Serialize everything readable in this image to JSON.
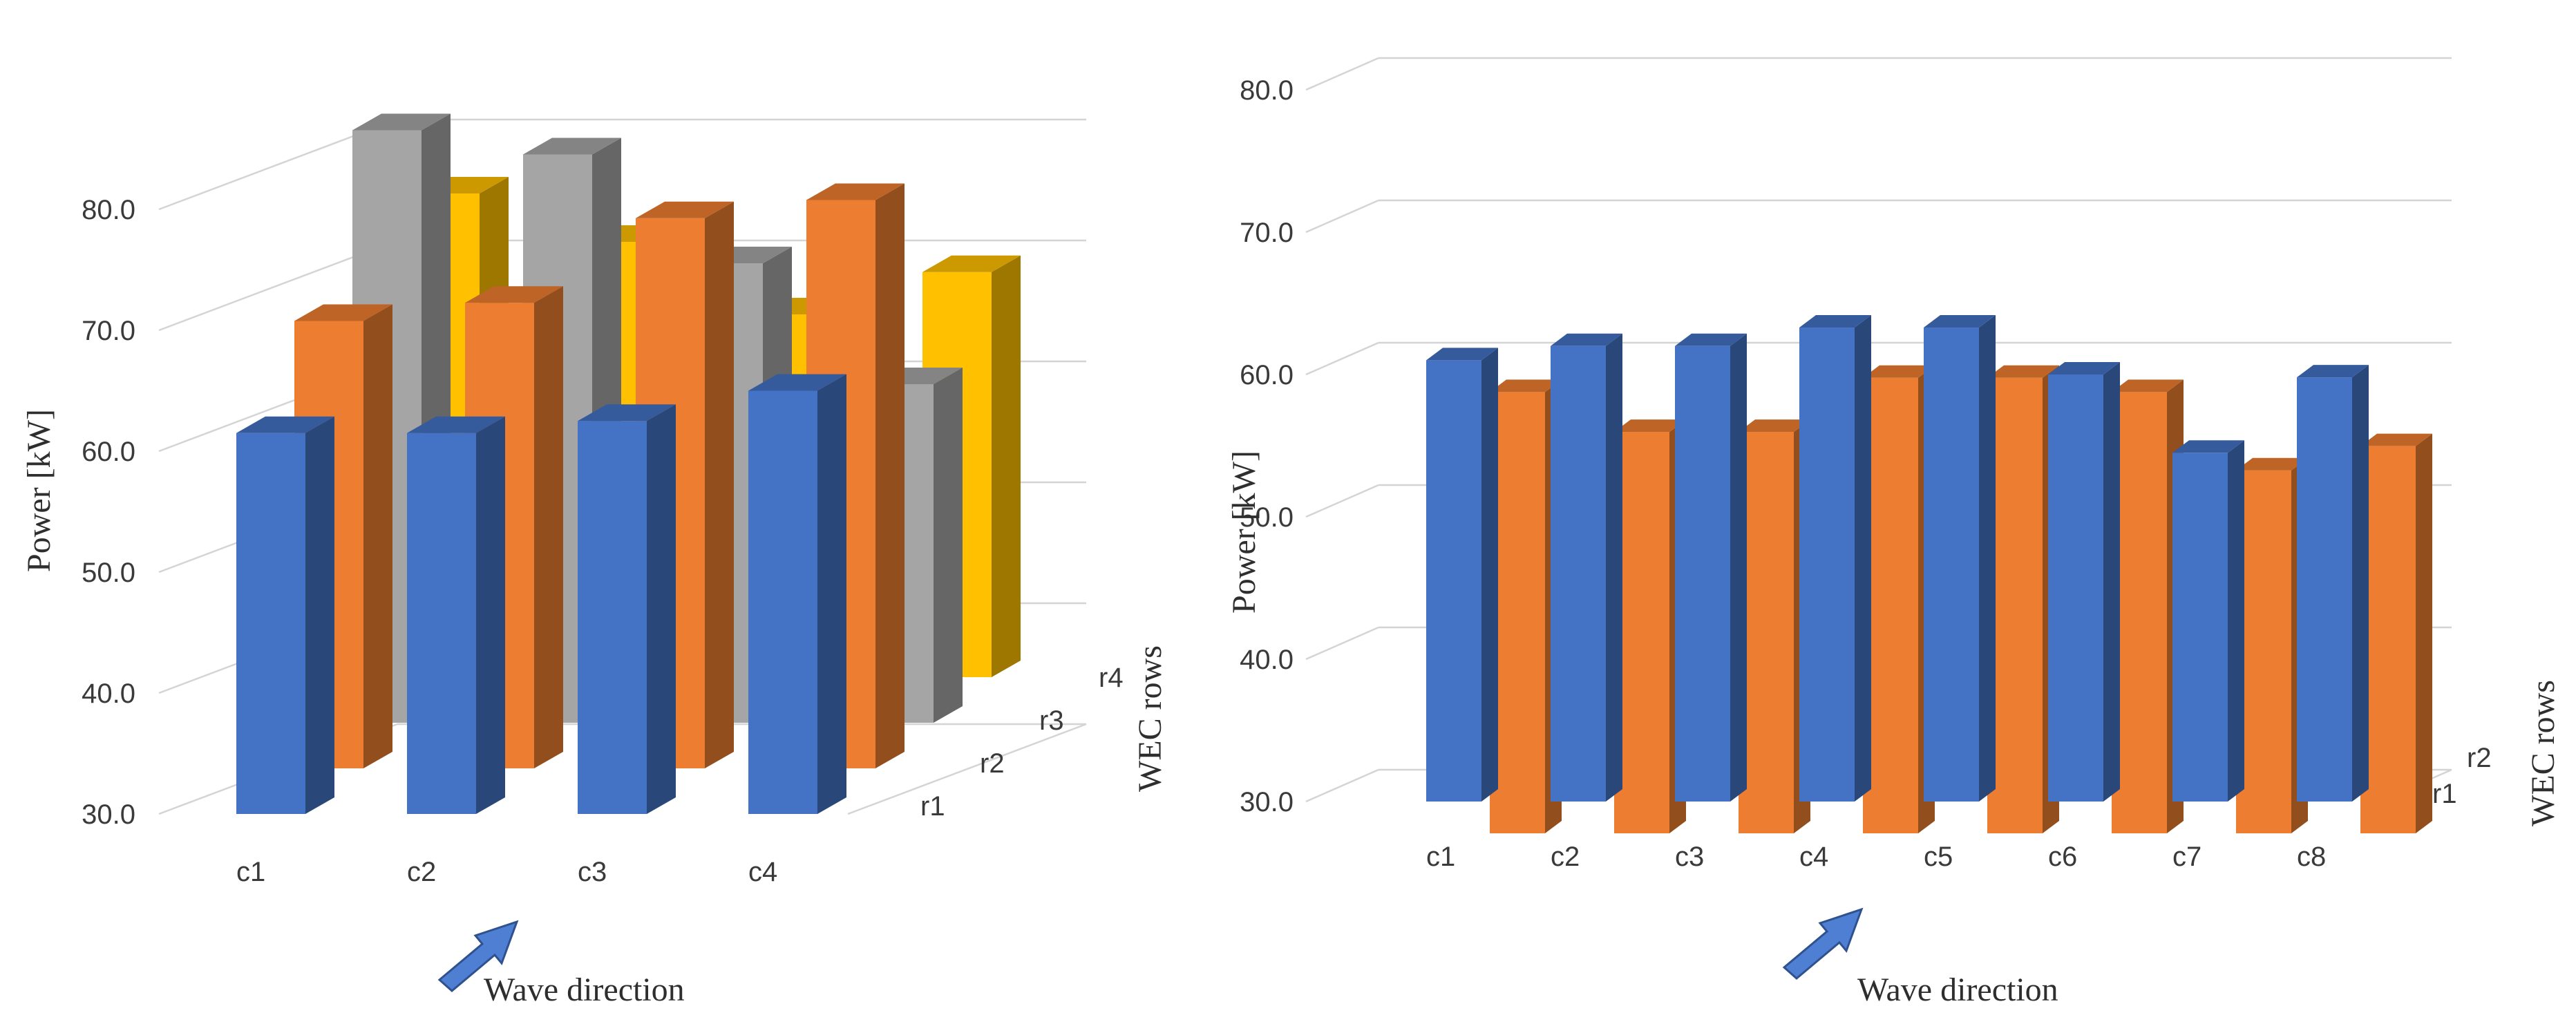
{
  "colors": {
    "r1": "#4472C4",
    "r2": "#ED7D31",
    "r3": "#A5A5A5",
    "r4": "#FFC000",
    "grid": "#D4D4D4",
    "arrow": "#4F7FD3"
  },
  "chart_data": [
    {
      "type": "bar",
      "variant": "3d-column",
      "title": "",
      "xlabel": "",
      "ylabel": "Power [kW]",
      "zlabel": "WEC rows",
      "annotation": "Wave direction",
      "ylim": [
        30,
        80
      ],
      "yticks": [
        "30.0",
        "40.0",
        "50.0",
        "60.0",
        "70.0",
        "80.0"
      ],
      "categories": [
        "c1",
        "c2",
        "c3",
        "c4"
      ],
      "series": [
        {
          "name": "r1",
          "values": [
            61.5,
            61.5,
            62.5,
            65.0
          ]
        },
        {
          "name": "r2",
          "values": [
            67.0,
            68.5,
            75.5,
            77.0
          ]
        },
        {
          "name": "r3",
          "values": [
            79.0,
            77.0,
            68.0,
            58.0
          ]
        },
        {
          "name": "r4",
          "values": [
            70.0,
            66.0,
            60.0,
            63.5
          ]
        }
      ]
    },
    {
      "type": "bar",
      "variant": "3d-column",
      "title": "",
      "xlabel": "",
      "ylabel": "Power [kW]",
      "zlabel": "WEC rows",
      "annotation": "Wave direction",
      "ylim": [
        30,
        80
      ],
      "yticks": [
        "30.0",
        "40.0",
        "50.0",
        "60.0",
        "70.0",
        "80.0"
      ],
      "categories": [
        "c1",
        "c2",
        "c3",
        "c4",
        "c5",
        "c6",
        "c7",
        "c8"
      ],
      "series": [
        {
          "name": "r1",
          "values": [
            61.0,
            62.0,
            62.0,
            63.3,
            63.3,
            60.0,
            54.5,
            59.8
          ]
        },
        {
          "name": "r2",
          "values": [
            61.0,
            58.2,
            58.2,
            62.0,
            62.0,
            61.0,
            55.5,
            57.2
          ]
        }
      ]
    }
  ]
}
